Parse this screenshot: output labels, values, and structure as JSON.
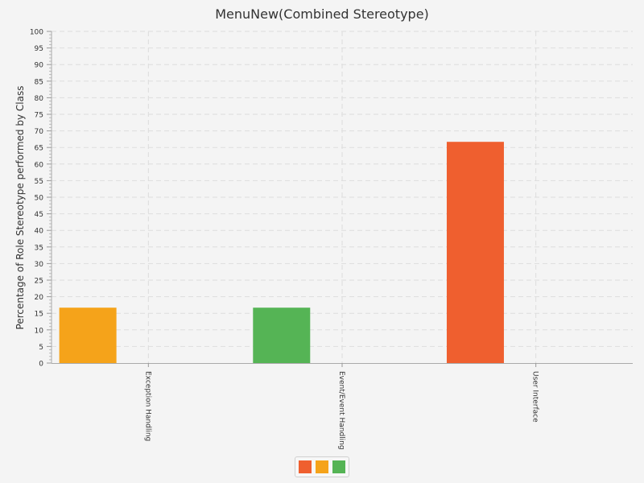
{
  "chart_data": {
    "type": "bar",
    "title": "MenuNew(Combined Stereotype)",
    "xlabel": "",
    "ylabel": "Percentage of Role Stereotype performed by Class",
    "categories": [
      "Exception Handling",
      "Event/Event Handling",
      "User Interface"
    ],
    "values": [
      16.7,
      16.7,
      66.7
    ],
    "bar_colors": [
      "#f5a31a",
      "#55b455",
      "#ef5f2f"
    ],
    "ylim": [
      0,
      100
    ],
    "y_ticks": [
      "0",
      "5",
      "10",
      "15",
      "20",
      "25",
      "30",
      "35",
      "40",
      "45",
      "50",
      "55",
      "60",
      "65",
      "70",
      "75",
      "80",
      "85",
      "90",
      "95",
      "100"
    ],
    "grid": true,
    "legend": {
      "placement": "bottom-center",
      "swatches": [
        "#ef5f2f",
        "#f5a31a",
        "#55b455"
      ]
    }
  }
}
